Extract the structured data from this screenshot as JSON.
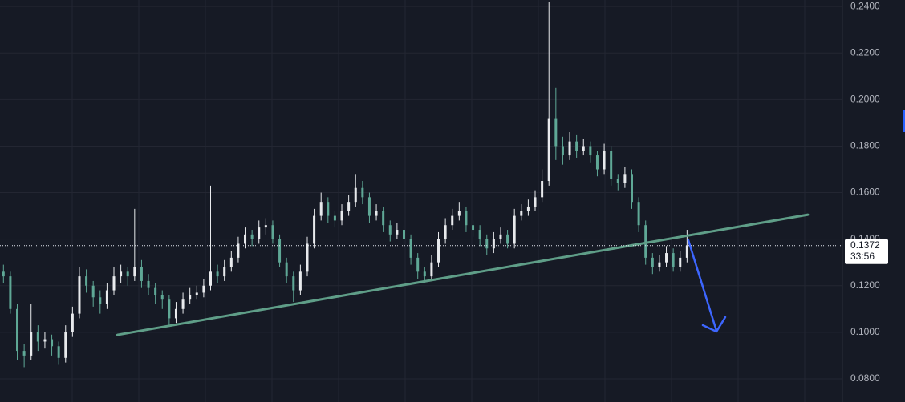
{
  "chart_data": {
    "type": "candlestick",
    "open": [
      0.126,
      0.124,
      0.11,
      0.092,
      0.09,
      0.1,
      0.096,
      0.097,
      0.094,
      0.089,
      0.1,
      0.108,
      0.124,
      0.12,
      0.115,
      0.112,
      0.118,
      0.124,
      0.126,
      0.124,
      0.128,
      0.122,
      0.119,
      0.116,
      0.114,
      0.106,
      0.11,
      0.114,
      0.116,
      0.117,
      0.12,
      0.126,
      0.124,
      0.128,
      0.132,
      0.138,
      0.142,
      0.14,
      0.145,
      0.146,
      0.14,
      0.13,
      0.124,
      0.118,
      0.126,
      0.138,
      0.15,
      0.156,
      0.15,
      0.148,
      0.152,
      0.156,
      0.162,
      0.158,
      0.15,
      0.152,
      0.146,
      0.142,
      0.144,
      0.14,
      0.132,
      0.126,
      0.124,
      0.13,
      0.14,
      0.146,
      0.15,
      0.152,
      0.146,
      0.144,
      0.14,
      0.136,
      0.14,
      0.142,
      0.138,
      0.15,
      0.152,
      0.154,
      0.158,
      0.165,
      0.192,
      0.18,
      0.176,
      0.182,
      0.178,
      0.18,
      0.176,
      0.17,
      0.178,
      0.166,
      0.164,
      0.168,
      0.156,
      0.146,
      0.132,
      0.128,
      0.13,
      0.134,
      0.128,
      0.132
    ],
    "high": [
      0.129,
      0.126,
      0.112,
      0.095,
      0.112,
      0.103,
      0.1,
      0.099,
      0.096,
      0.103,
      0.111,
      0.128,
      0.127,
      0.122,
      0.118,
      0.121,
      0.128,
      0.129,
      0.128,
      0.153,
      0.131,
      0.125,
      0.121,
      0.118,
      0.116,
      0.113,
      0.117,
      0.119,
      0.12,
      0.123,
      0.163,
      0.129,
      0.131,
      0.135,
      0.141,
      0.145,
      0.144,
      0.148,
      0.149,
      0.148,
      0.142,
      0.132,
      0.126,
      0.129,
      0.141,
      0.153,
      0.16,
      0.158,
      0.152,
      0.155,
      0.159,
      0.168,
      0.165,
      0.16,
      0.155,
      0.154,
      0.148,
      0.147,
      0.146,
      0.142,
      0.134,
      0.128,
      0.133,
      0.143,
      0.149,
      0.153,
      0.156,
      0.154,
      0.148,
      0.146,
      0.142,
      0.143,
      0.145,
      0.144,
      0.153,
      0.155,
      0.157,
      0.161,
      0.17,
      0.242,
      0.205,
      0.184,
      0.186,
      0.185,
      0.183,
      0.182,
      0.178,
      0.181,
      0.18,
      0.168,
      0.171,
      0.17,
      0.158,
      0.148,
      0.134,
      0.133,
      0.137,
      0.136,
      0.135,
      0.144
    ],
    "low": [
      0.121,
      0.108,
      0.088,
      0.085,
      0.088,
      0.092,
      0.093,
      0.09,
      0.086,
      0.087,
      0.098,
      0.106,
      0.117,
      0.111,
      0.108,
      0.11,
      0.116,
      0.121,
      0.12,
      0.122,
      0.119,
      0.116,
      0.112,
      0.11,
      0.103,
      0.104,
      0.108,
      0.112,
      0.114,
      0.115,
      0.118,
      0.121,
      0.122,
      0.126,
      0.13,
      0.136,
      0.137,
      0.138,
      0.142,
      0.138,
      0.128,
      0.121,
      0.113,
      0.116,
      0.124,
      0.136,
      0.148,
      0.147,
      0.145,
      0.146,
      0.15,
      0.154,
      0.155,
      0.147,
      0.148,
      0.143,
      0.139,
      0.14,
      0.137,
      0.129,
      0.123,
      0.121,
      0.122,
      0.128,
      0.138,
      0.144,
      0.148,
      0.143,
      0.141,
      0.137,
      0.133,
      0.134,
      0.138,
      0.136,
      0.136,
      0.148,
      0.15,
      0.152,
      0.156,
      0.163,
      0.174,
      0.172,
      0.174,
      0.175,
      0.176,
      0.173,
      0.167,
      0.168,
      0.163,
      0.161,
      0.162,
      0.153,
      0.143,
      0.129,
      0.125,
      0.126,
      0.128,
      0.126,
      0.126,
      0.13
    ],
    "close": [
      0.124,
      0.11,
      0.092,
      0.09,
      0.1,
      0.096,
      0.097,
      0.094,
      0.089,
      0.1,
      0.108,
      0.124,
      0.12,
      0.115,
      0.112,
      0.118,
      0.124,
      0.126,
      0.124,
      0.128,
      0.122,
      0.119,
      0.116,
      0.114,
      0.106,
      0.11,
      0.114,
      0.116,
      0.117,
      0.12,
      0.126,
      0.124,
      0.128,
      0.132,
      0.138,
      0.142,
      0.14,
      0.145,
      0.146,
      0.14,
      0.13,
      0.124,
      0.118,
      0.126,
      0.138,
      0.15,
      0.156,
      0.15,
      0.148,
      0.152,
      0.156,
      0.162,
      0.158,
      0.15,
      0.152,
      0.146,
      0.142,
      0.144,
      0.14,
      0.132,
      0.126,
      0.124,
      0.13,
      0.14,
      0.146,
      0.15,
      0.152,
      0.146,
      0.144,
      0.14,
      0.136,
      0.14,
      0.142,
      0.138,
      0.15,
      0.152,
      0.154,
      0.158,
      0.165,
      0.192,
      0.18,
      0.176,
      0.182,
      0.178,
      0.18,
      0.176,
      0.17,
      0.178,
      0.166,
      0.164,
      0.168,
      0.156,
      0.146,
      0.132,
      0.128,
      0.13,
      0.134,
      0.128,
      0.132,
      0.1372
    ],
    "up_color": "#e8eaed",
    "down_color": "#5fa896",
    "xlim": [
      -0.5,
      121.5
    ],
    "ylim": [
      0.07,
      0.2428
    ],
    "yticks": [
      {
        "value": 0.08,
        "label": "0.0800"
      },
      {
        "value": 0.1,
        "label": "0.1000"
      },
      {
        "value": 0.12,
        "label": "0.1200"
      },
      {
        "value": 0.14,
        "label": "0.1400"
      },
      {
        "value": 0.16,
        "label": "0.1600"
      },
      {
        "value": 0.18,
        "label": "0.1800"
      },
      {
        "value": 0.2,
        "label": "0.2000"
      },
      {
        "value": 0.22,
        "label": "0.2200"
      },
      {
        "value": 0.24,
        "label": "0.2400"
      }
    ],
    "grid": true,
    "trendline": {
      "x": [
        16.5,
        116.5
      ],
      "y": [
        0.0989,
        0.1505
      ],
      "color": "#5f9e88"
    },
    "last_price": 0.1372,
    "countdown": "33:56"
  }
}
